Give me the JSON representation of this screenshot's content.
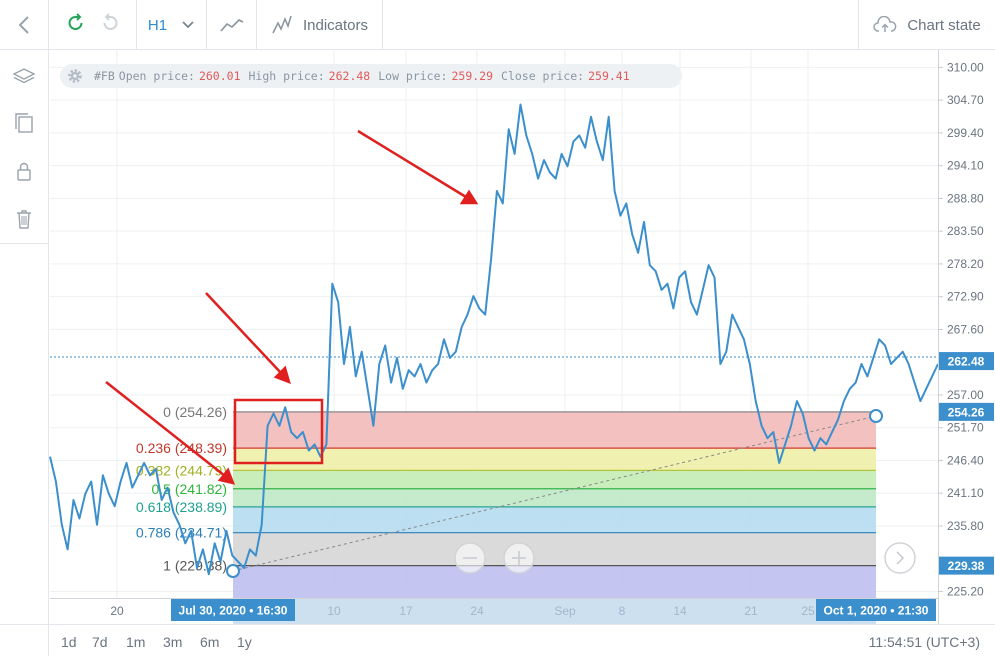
{
  "toolbar": {
    "timeframe": "H1",
    "indicators_label": "Indicators",
    "chart_state_label": "Chart state"
  },
  "info": {
    "symbol": "#FB",
    "open_label": "Open price:",
    "open": "260.01",
    "high_label": "High price:",
    "high": "262.48",
    "low_label": "Low price:",
    "low": "259.29",
    "close_label": "Close price:",
    "close": "259.41"
  },
  "periods": [
    "1d",
    "7d",
    "1m",
    "3m",
    "6m",
    "1y"
  ],
  "clock": "11:54:51 (UTC+3)",
  "colors": {
    "line": "#3b8fcc",
    "accent": "#3b8fcc",
    "arrow": "#e01f1f"
  },
  "chart_data": {
    "type": "line",
    "price_axis_labels": [
      "310.00",
      "304.70",
      "299.40",
      "294.10",
      "288.80",
      "283.50",
      "278.20",
      "272.90",
      "267.60",
      "257.00",
      "251.70",
      "246.40",
      "241.10",
      "235.80",
      "225.20"
    ],
    "price_axis_values": [
      310.0,
      304.7,
      299.4,
      294.1,
      288.8,
      283.5,
      278.2,
      272.9,
      267.6,
      257.0,
      251.7,
      246.4,
      241.1,
      235.8,
      225.2
    ],
    "current_price": "262.48",
    "fib_high_badge": "254.26",
    "fib_low_badge": "229.38",
    "time_axis_labels": [
      "20",
      "10",
      "17",
      "24",
      "Sep",
      "8",
      "14",
      "21",
      "25"
    ],
    "time_badge_start": "Jul 30, 2020 • 16:30",
    "time_badge_end": "Oct 1, 2020 • 21:30",
    "fib_levels": [
      {
        "label": "0 (254.26)",
        "value": 254.26,
        "text_color": "#777777",
        "line_color": "#888888",
        "fill": "#f3baba"
      },
      {
        "label": "0.236 (248.39)",
        "value": 248.39,
        "text_color": "#c0392b",
        "line_color": "#d13a2f",
        "fill": "#eef0a8"
      },
      {
        "label": "0.382 (244.79)",
        "value": 244.79,
        "text_color": "#a0b020",
        "line_color": "#b6c437",
        "fill": "#c4ecb4"
      },
      {
        "label": "0.5 (241.82)",
        "value": 241.82,
        "text_color": "#2fb53a",
        "line_color": "#35b44a",
        "fill": "#bfe8c6"
      },
      {
        "label": "0.618 (238.89)",
        "value": 238.89,
        "text_color": "#20a090",
        "line_color": "#2aa597",
        "fill": "#b5dcef"
      },
      {
        "label": "0.786 (234.71)",
        "value": 234.71,
        "text_color": "#2a7fb5",
        "line_color": "#2f7fb8",
        "fill": "#d6d6d6"
      },
      {
        "label": "1 (229.38)",
        "value": 229.38,
        "text_color": "#555555",
        "line_color": "#555555",
        "fill": "#bfbff0"
      }
    ],
    "series": [
      {
        "values": [
          247,
          243,
          236,
          232,
          240,
          237,
          241,
          243,
          236,
          244,
          241,
          239,
          243,
          246,
          242,
          244,
          246,
          244,
          245,
          240,
          242,
          238,
          236,
          233,
          235,
          229,
          232,
          228,
          233,
          230,
          235,
          231,
          230,
          229,
          232,
          231,
          236,
          252,
          254,
          252,
          255,
          251,
          250,
          251,
          248,
          249,
          247,
          249,
          275,
          272,
          262,
          268,
          260,
          264,
          258,
          252,
          262,
          265,
          259,
          263,
          258,
          261,
          260,
          262,
          259,
          261,
          262,
          266,
          263,
          264,
          268,
          270,
          273,
          271,
          270,
          279,
          290,
          288,
          300,
          296,
          304,
          299,
          296,
          292,
          295,
          293,
          292,
          296,
          294,
          298,
          299,
          297,
          302,
          298,
          295,
          302,
          290,
          286,
          288,
          283,
          280,
          285,
          278,
          277,
          274,
          275,
          271,
          276,
          277,
          272,
          270,
          274,
          278,
          276,
          262,
          264,
          270,
          268,
          266,
          262,
          256,
          252,
          250,
          251,
          246,
          249,
          252,
          256,
          254,
          250,
          248,
          250,
          249,
          251,
          253,
          256,
          258,
          259,
          262,
          260,
          263,
          266,
          265,
          262,
          263,
          264,
          262,
          259,
          256,
          258,
          260,
          262
        ]
      }
    ]
  }
}
